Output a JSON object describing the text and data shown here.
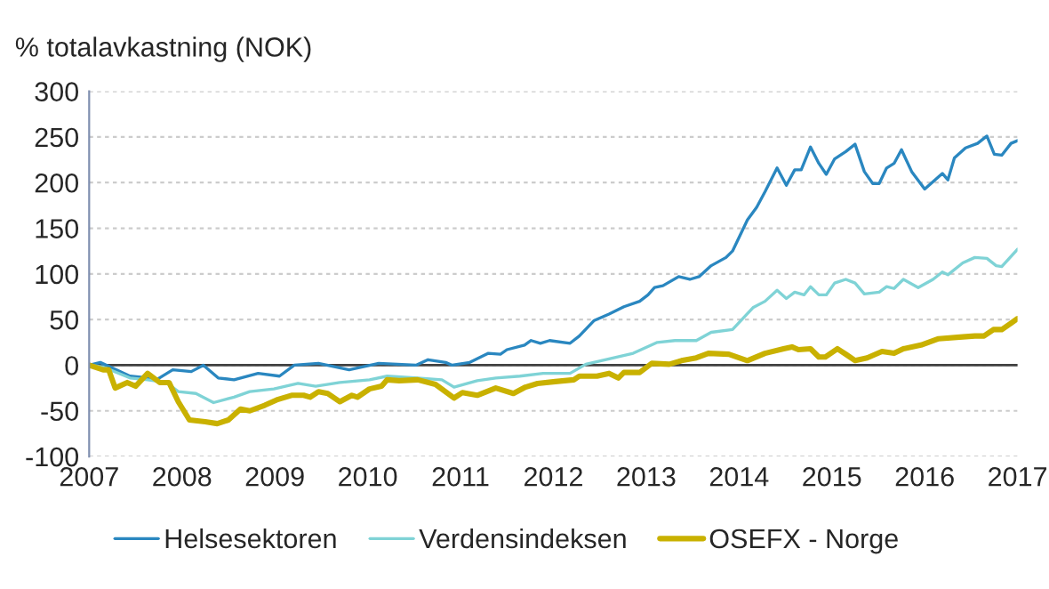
{
  "chart_data": {
    "type": "line",
    "ylabel": "% totalavkastning (NOK)",
    "xlim": [
      2007,
      2017
    ],
    "xticks": [
      {
        "value": 2007,
        "label": "2007"
      },
      {
        "value": 2008,
        "label": "2008"
      },
      {
        "value": 2009,
        "label": "2009"
      },
      {
        "value": 2010,
        "label": "2010"
      },
      {
        "value": 2011,
        "label": "2011"
      },
      {
        "value": 2012,
        "label": "2012"
      },
      {
        "value": 2013,
        "label": "2013"
      },
      {
        "value": 2014,
        "label": "2014"
      },
      {
        "value": 2015,
        "label": "2015"
      },
      {
        "value": 2016,
        "label": "2016"
      },
      {
        "value": 2017,
        "label": "2017"
      }
    ],
    "ylim": [
      -100,
      300
    ],
    "yticks": [
      -100,
      -50,
      0,
      50,
      100,
      150,
      200,
      250,
      300
    ],
    "grid": "y",
    "legend": "bottom",
    "marker": "none",
    "line_style": "solid",
    "ref_lines": [
      {
        "axis": "y",
        "value": 0,
        "color": "#404040"
      }
    ],
    "series": [
      {
        "name": "Helsesektoren",
        "color": "#2a87c0",
        "x": [
          2007,
          2007.12,
          2007.44,
          2007.74,
          2007.9,
          2008.1,
          2008.23,
          2008.39,
          2008.56,
          2008.82,
          2009.05,
          2009.21,
          2009.47,
          2009.8,
          2010.12,
          2010.52,
          2010.65,
          2010.84,
          2010.91,
          2011.1,
          2011.3,
          2011.43,
          2011.5,
          2011.69,
          2011.76,
          2011.86,
          2011.96,
          2012.18,
          2012.28,
          2012.44,
          2012.6,
          2012.76,
          2012.93,
          2013.02,
          2013.09,
          2013.18,
          2013.35,
          2013.47,
          2013.57,
          2013.7,
          2013.86,
          2013.93,
          2014.09,
          2014.19,
          2014.28,
          2014.41,
          2014.51,
          2014.6,
          2014.67,
          2014.77,
          2014.86,
          2014.94,
          2015.03,
          2015.15,
          2015.25,
          2015.35,
          2015.44,
          2015.51,
          2015.59,
          2015.67,
          2015.75,
          2015.86,
          2016.0,
          2016.19,
          2016.25,
          2016.32,
          2016.44,
          2016.57,
          2016.67,
          2016.75,
          2016.83,
          2016.93,
          2017.0
        ],
        "values": [
          0,
          3,
          -12,
          -15,
          -5,
          -7,
          0,
          -14,
          -16,
          -9,
          -12,
          0,
          2,
          -5,
          2,
          0,
          6,
          3,
          0,
          3,
          13,
          12,
          17,
          22,
          27,
          24,
          27,
          24,
          32,
          49,
          56,
          64,
          70,
          77,
          85,
          87,
          97,
          94,
          97,
          109,
          118,
          125,
          159,
          173,
          190,
          216,
          197,
          214,
          214,
          239,
          221,
          209,
          226,
          234,
          242,
          212,
          199,
          199,
          216,
          221,
          236,
          212,
          193,
          210,
          203,
          227,
          238,
          243,
          251,
          231,
          230,
          243,
          246
        ]
      },
      {
        "name": "Verdensindeksen",
        "color": "#7fd3d6",
        "x": [
          2007,
          2007.15,
          2007.44,
          2007.63,
          2007.83,
          2007.96,
          2008.15,
          2008.34,
          2008.56,
          2008.73,
          2008.99,
          2009.25,
          2009.44,
          2009.7,
          2010.02,
          2010.21,
          2010.54,
          2010.8,
          2010.93,
          2011.18,
          2011.38,
          2011.64,
          2011.89,
          2012.18,
          2012.35,
          2012.6,
          2012.86,
          2013.12,
          2013.31,
          2013.54,
          2013.7,
          2013.93,
          2014.15,
          2014.28,
          2014.41,
          2014.51,
          2014.6,
          2014.7,
          2014.77,
          2014.86,
          2014.94,
          2015.03,
          2015.15,
          2015.25,
          2015.35,
          2015.51,
          2015.59,
          2015.67,
          2015.77,
          2015.93,
          2016.09,
          2016.19,
          2016.25,
          2016.41,
          2016.54,
          2016.67,
          2016.77,
          2016.83,
          2017.0
        ],
        "values": [
          0,
          -2,
          -14,
          -16,
          -19,
          -29,
          -31,
          -41,
          -35,
          -29,
          -26,
          -20,
          -23,
          -19,
          -16,
          -12,
          -14,
          -16,
          -24,
          -17,
          -14,
          -12,
          -9,
          -9,
          1,
          7,
          13,
          25,
          27,
          27,
          36,
          39,
          63,
          70,
          82,
          73,
          80,
          77,
          86,
          77,
          77,
          90,
          94,
          90,
          78,
          80,
          86,
          84,
          94,
          85,
          94,
          102,
          99,
          112,
          118,
          117,
          109,
          108,
          127
        ]
      },
      {
        "name": "OSEFX - Norge",
        "color": "#c9b100",
        "x": [
          2007,
          2007.15,
          2007.21,
          2007.28,
          2007.41,
          2007.5,
          2007.63,
          2007.76,
          2007.86,
          2007.96,
          2008.08,
          2008.25,
          2008.38,
          2008.5,
          2008.63,
          2008.73,
          2008.89,
          2009.02,
          2009.18,
          2009.31,
          2009.38,
          2009.47,
          2009.57,
          2009.7,
          2009.83,
          2009.89,
          2010.02,
          2010.15,
          2010.21,
          2010.34,
          2010.54,
          2010.73,
          2010.93,
          2011.02,
          2011.18,
          2011.38,
          2011.57,
          2011.7,
          2011.83,
          2012.02,
          2012.22,
          2012.28,
          2012.47,
          2012.6,
          2012.7,
          2012.76,
          2012.93,
          2013.06,
          2013.25,
          2013.38,
          2013.54,
          2013.67,
          2013.89,
          2014.09,
          2014.28,
          2014.48,
          2014.57,
          2014.64,
          2014.77,
          2014.86,
          2014.93,
          2015.06,
          2015.15,
          2015.25,
          2015.38,
          2015.54,
          2015.67,
          2015.77,
          2015.96,
          2016.15,
          2016.41,
          2016.54,
          2016.64,
          2016.74,
          2016.83,
          2016.93,
          2017.0
        ],
        "values": [
          0,
          -5,
          -5,
          -25,
          -19,
          -23,
          -9,
          -19,
          -19,
          -40,
          -60,
          -62,
          -64,
          -60,
          -48,
          -50,
          -44,
          -38,
          -33,
          -33,
          -35,
          -29,
          -31,
          -40,
          -33,
          -35,
          -26,
          -23,
          -16,
          -17,
          -16,
          -21,
          -36,
          -30,
          -33,
          -25,
          -31,
          -24,
          -20,
          -18,
          -16,
          -12,
          -12,
          -9,
          -14,
          -8,
          -8,
          2,
          1,
          5,
          8,
          13,
          12,
          5,
          13,
          18,
          20,
          17,
          18,
          9,
          9,
          18,
          12,
          5,
          8,
          15,
          13,
          18,
          22,
          29,
          31,
          32,
          32,
          39,
          39,
          46,
          51
        ]
      }
    ]
  }
}
